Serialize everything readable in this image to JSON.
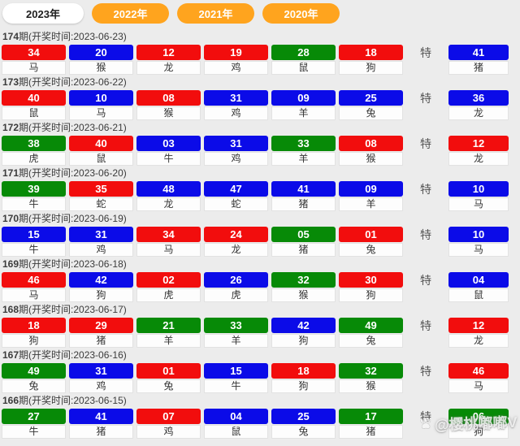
{
  "tabs": [
    {
      "label": "2023年",
      "active": true
    },
    {
      "label": "2022年",
      "active": false
    },
    {
      "label": "2021年",
      "active": false
    },
    {
      "label": "2020年",
      "active": false
    }
  ],
  "special_label": "特",
  "colors": {
    "red": "#f20d0d",
    "blue": "#0b0be8",
    "green": "#078a07",
    "orange": "#ffa41e"
  },
  "watermark": {
    "icon": "paw-icon",
    "text": "@樱桃嘟嘟V"
  },
  "rows": [
    {
      "period": "174",
      "title_suffix": "期(开奖时间:2023-06-23)",
      "numbers": [
        {
          "value": "34",
          "color": "red",
          "zodiac": "马"
        },
        {
          "value": "20",
          "color": "blue",
          "zodiac": "猴"
        },
        {
          "value": "12",
          "color": "red",
          "zodiac": "龙"
        },
        {
          "value": "19",
          "color": "red",
          "zodiac": "鸡"
        },
        {
          "value": "28",
          "color": "green",
          "zodiac": "鼠"
        },
        {
          "value": "18",
          "color": "red",
          "zodiac": "狗"
        }
      ],
      "special": {
        "value": "41",
        "color": "blue",
        "zodiac": "猪"
      }
    },
    {
      "period": "173",
      "title_suffix": "期(开奖时间:2023-06-22)",
      "numbers": [
        {
          "value": "40",
          "color": "red",
          "zodiac": "鼠"
        },
        {
          "value": "10",
          "color": "blue",
          "zodiac": "马"
        },
        {
          "value": "08",
          "color": "red",
          "zodiac": "猴"
        },
        {
          "value": "31",
          "color": "blue",
          "zodiac": "鸡"
        },
        {
          "value": "09",
          "color": "blue",
          "zodiac": "羊"
        },
        {
          "value": "25",
          "color": "blue",
          "zodiac": "兔"
        }
      ],
      "special": {
        "value": "36",
        "color": "blue",
        "zodiac": "龙"
      }
    },
    {
      "period": "172",
      "title_suffix": "期(开奖时间:2023-06-21)",
      "numbers": [
        {
          "value": "38",
          "color": "green",
          "zodiac": "虎"
        },
        {
          "value": "40",
          "color": "red",
          "zodiac": "鼠"
        },
        {
          "value": "03",
          "color": "blue",
          "zodiac": "牛"
        },
        {
          "value": "31",
          "color": "blue",
          "zodiac": "鸡"
        },
        {
          "value": "33",
          "color": "green",
          "zodiac": "羊"
        },
        {
          "value": "08",
          "color": "red",
          "zodiac": "猴"
        }
      ],
      "special": {
        "value": "12",
        "color": "red",
        "zodiac": "龙"
      }
    },
    {
      "period": "171",
      "title_suffix": "期(开奖时间:2023-06-20)",
      "numbers": [
        {
          "value": "39",
          "color": "green",
          "zodiac": "牛"
        },
        {
          "value": "35",
          "color": "red",
          "zodiac": "蛇"
        },
        {
          "value": "48",
          "color": "blue",
          "zodiac": "龙"
        },
        {
          "value": "47",
          "color": "blue",
          "zodiac": "蛇"
        },
        {
          "value": "41",
          "color": "blue",
          "zodiac": "猪"
        },
        {
          "value": "09",
          "color": "blue",
          "zodiac": "羊"
        }
      ],
      "special": {
        "value": "10",
        "color": "blue",
        "zodiac": "马"
      }
    },
    {
      "period": "170",
      "title_suffix": "期(开奖时间:2023-06-19)",
      "numbers": [
        {
          "value": "15",
          "color": "blue",
          "zodiac": "牛"
        },
        {
          "value": "31",
          "color": "blue",
          "zodiac": "鸡"
        },
        {
          "value": "34",
          "color": "red",
          "zodiac": "马"
        },
        {
          "value": "24",
          "color": "red",
          "zodiac": "龙"
        },
        {
          "value": "05",
          "color": "green",
          "zodiac": "猪"
        },
        {
          "value": "01",
          "color": "red",
          "zodiac": "兔"
        }
      ],
      "special": {
        "value": "10",
        "color": "blue",
        "zodiac": "马"
      }
    },
    {
      "period": "169",
      "title_suffix": "期(开奖时间:2023-06-18)",
      "numbers": [
        {
          "value": "46",
          "color": "red",
          "zodiac": "马"
        },
        {
          "value": "42",
          "color": "blue",
          "zodiac": "狗"
        },
        {
          "value": "02",
          "color": "red",
          "zodiac": "虎"
        },
        {
          "value": "26",
          "color": "blue",
          "zodiac": "虎"
        },
        {
          "value": "32",
          "color": "green",
          "zodiac": "猴"
        },
        {
          "value": "30",
          "color": "red",
          "zodiac": "狗"
        }
      ],
      "special": {
        "value": "04",
        "color": "blue",
        "zodiac": "鼠"
      }
    },
    {
      "period": "168",
      "title_suffix": "期(开奖时间:2023-06-17)",
      "numbers": [
        {
          "value": "18",
          "color": "red",
          "zodiac": "狗"
        },
        {
          "value": "29",
          "color": "red",
          "zodiac": "猪"
        },
        {
          "value": "21",
          "color": "green",
          "zodiac": "羊"
        },
        {
          "value": "33",
          "color": "green",
          "zodiac": "羊"
        },
        {
          "value": "42",
          "color": "blue",
          "zodiac": "狗"
        },
        {
          "value": "49",
          "color": "green",
          "zodiac": "兔"
        }
      ],
      "special": {
        "value": "12",
        "color": "red",
        "zodiac": "龙"
      }
    },
    {
      "period": "167",
      "title_suffix": "期(开奖时间:2023-06-16)",
      "numbers": [
        {
          "value": "49",
          "color": "green",
          "zodiac": "兔"
        },
        {
          "value": "31",
          "color": "blue",
          "zodiac": "鸡"
        },
        {
          "value": "01",
          "color": "red",
          "zodiac": "兔"
        },
        {
          "value": "15",
          "color": "blue",
          "zodiac": "牛"
        },
        {
          "value": "18",
          "color": "red",
          "zodiac": "狗"
        },
        {
          "value": "32",
          "color": "green",
          "zodiac": "猴"
        }
      ],
      "special": {
        "value": "46",
        "color": "red",
        "zodiac": "马"
      }
    },
    {
      "period": "166",
      "title_suffix": "期(开奖时间:2023-06-15)",
      "numbers": [
        {
          "value": "27",
          "color": "green",
          "zodiac": "牛"
        },
        {
          "value": "41",
          "color": "blue",
          "zodiac": "猪"
        },
        {
          "value": "07",
          "color": "red",
          "zodiac": "鸡"
        },
        {
          "value": "04",
          "color": "blue",
          "zodiac": "鼠"
        },
        {
          "value": "25",
          "color": "blue",
          "zodiac": "兔"
        },
        {
          "value": "17",
          "color": "green",
          "zodiac": "猪"
        }
      ],
      "special": {
        "value": "06",
        "color": "green",
        "zodiac": "狗"
      }
    }
  ]
}
